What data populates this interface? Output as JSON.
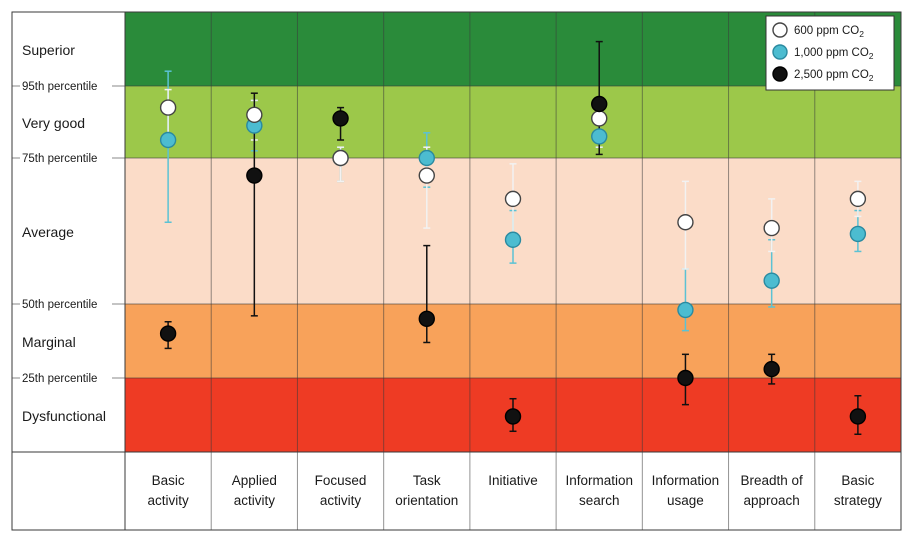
{
  "chart_data": {
    "type": "scatter",
    "bands": [
      {
        "label": "Superior",
        "color": "#2a8b3a",
        "from": 95,
        "to": 100
      },
      {
        "label": "Very good",
        "color": "#9cc84a",
        "from": 75,
        "to": 95
      },
      {
        "label": "Average",
        "color": "#fbdcc8",
        "from": 50,
        "to": 75
      },
      {
        "label": "Marginal",
        "color": "#f8a25a",
        "from": 25,
        "to": 50
      },
      {
        "label": "Dysfunctional",
        "color": "#ee3b24",
        "from": 0,
        "to": 25
      }
    ],
    "percentile_lines": [
      {
        "label": "95th percentile",
        "value": 95
      },
      {
        "label": "75th percentile",
        "value": 75
      },
      {
        "label": "50th percentile",
        "value": 50
      },
      {
        "label": "25th percentile",
        "value": 25
      }
    ],
    "categories": [
      [
        "Basic",
        "activity"
      ],
      [
        "Applied",
        "activity"
      ],
      [
        "Focused",
        "activity"
      ],
      [
        "Task",
        "orientation"
      ],
      [
        "Initiative"
      ],
      [
        "Information",
        "search"
      ],
      [
        "Information",
        "usage"
      ],
      [
        "Breadth of",
        "approach"
      ],
      [
        "Basic",
        "strategy"
      ]
    ],
    "legend": {
      "position": "top-right",
      "items": [
        {
          "prefix": "600 ppm CO",
          "sub": "2",
          "key": "s600"
        },
        {
          "prefix": "1,000 ppm CO",
          "sub": "2",
          "key": "s1000"
        },
        {
          "prefix": "2,500 ppm CO",
          "sub": "2",
          "key": "s2500"
        }
      ]
    },
    "series": [
      {
        "key": "s600",
        "fill": "#ffffff",
        "stroke": "#444444",
        "errorbar_color": "#f2f2f2",
        "points": [
          {
            "y": 89,
            "lo": 81,
            "hi": 94
          },
          {
            "y": 87,
            "lo": 80,
            "hi": 91
          },
          {
            "y": 75,
            "lo": 71,
            "hi": 78
          },
          {
            "y": 72,
            "lo": 63,
            "hi": 78
          },
          {
            "y": 68,
            "lo": 60,
            "hi": 74
          },
          {
            "y": 86,
            "lo": 78,
            "hi": 90
          },
          {
            "y": 64,
            "lo": 56,
            "hi": 71
          },
          {
            "y": 63,
            "lo": 59,
            "hi": 68
          },
          {
            "y": 68,
            "lo": 65,
            "hi": 71
          }
        ]
      },
      {
        "key": "s1000",
        "fill": "#4cbcd0",
        "stroke": "#2a8aa0",
        "errorbar_color": "#5bc2d4",
        "points": [
          {
            "y": 80,
            "lo": 64,
            "hi": 96
          },
          {
            "y": 84,
            "lo": 77,
            "hi": 91
          },
          {
            "y": 75,
            "lo": 71,
            "hi": 78
          },
          {
            "y": 75,
            "lo": 70,
            "hi": 82
          },
          {
            "y": 61,
            "lo": 57,
            "hi": 66
          },
          {
            "y": 81,
            "lo": 78,
            "hi": 85
          },
          {
            "y": 48,
            "lo": 41,
            "hi": 56
          },
          {
            "y": 54,
            "lo": 49,
            "hi": 61
          },
          {
            "y": 62,
            "lo": 59,
            "hi": 66
          }
        ]
      },
      {
        "key": "s2500",
        "fill": "#111111",
        "stroke": "#000000",
        "errorbar_color": "#111111",
        "points": [
          {
            "y": 40,
            "lo": 35,
            "hi": 44
          },
          {
            "y": 72,
            "lo": 46,
            "hi": 93
          },
          {
            "y": 86,
            "lo": 80,
            "hi": 89
          },
          {
            "y": 45,
            "lo": 37,
            "hi": 60
          },
          {
            "y": 12,
            "lo": 7,
            "hi": 18
          },
          {
            "y": 90,
            "lo": 76,
            "hi": 98
          },
          {
            "y": 25,
            "lo": 16,
            "hi": 33
          },
          {
            "y": 28,
            "lo": 23,
            "hi": 33
          },
          {
            "y": 12,
            "lo": 6,
            "hi": 19
          }
        ]
      }
    ]
  }
}
